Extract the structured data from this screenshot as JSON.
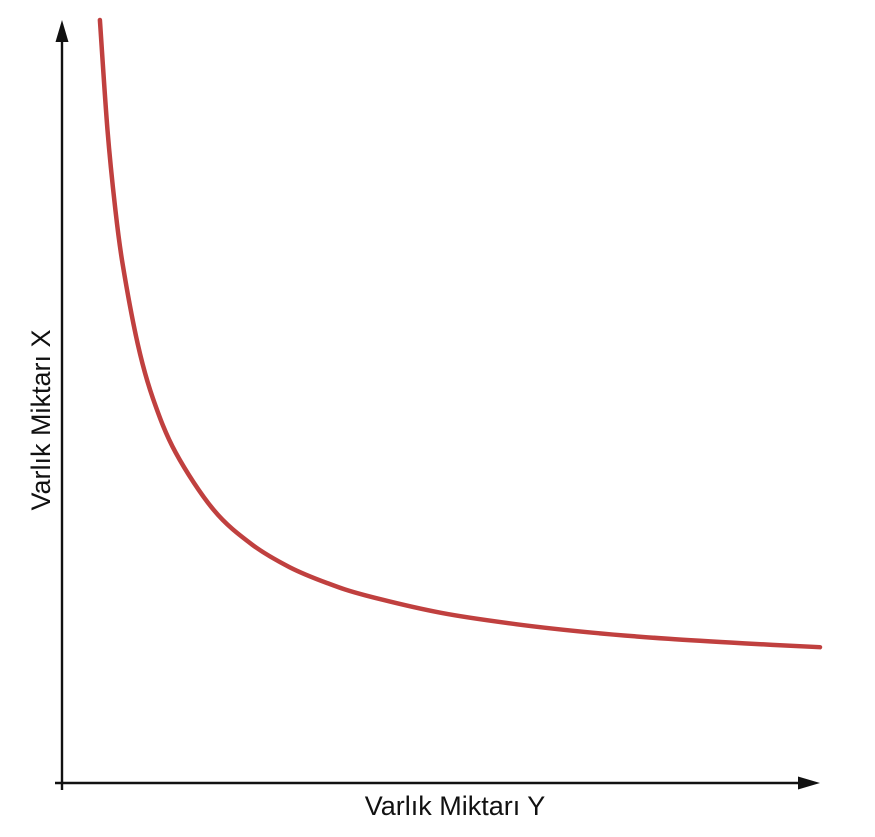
{
  "chart_data": {
    "type": "line",
    "title": "",
    "xlabel": "Varlık Miktarı Y",
    "ylabel": "Varlık Miktarı X",
    "xlim": [
      0,
      1
    ],
    "ylim": [
      0,
      1
    ],
    "grid": false,
    "legend": "none",
    "x_ticks": [],
    "y_ticks": [],
    "colors": {
      "curve": "#c0403f",
      "axis": "#111111",
      "background": "#ffffff"
    },
    "series": [
      {
        "x": [
          0.05,
          0.06,
          0.07,
          0.08,
          0.1,
          0.12,
          0.15,
          0.2,
          0.25,
          0.3,
          0.35,
          0.4,
          0.5,
          0.6,
          0.7,
          0.8,
          0.9,
          1.0
        ],
        "y": [
          1.0,
          0.856,
          0.755,
          0.68,
          0.575,
          0.504,
          0.433,
          0.358,
          0.313,
          0.283,
          0.262,
          0.246,
          0.223,
          0.208,
          0.197,
          0.189,
          0.183,
          0.178
        ]
      }
    ]
  }
}
